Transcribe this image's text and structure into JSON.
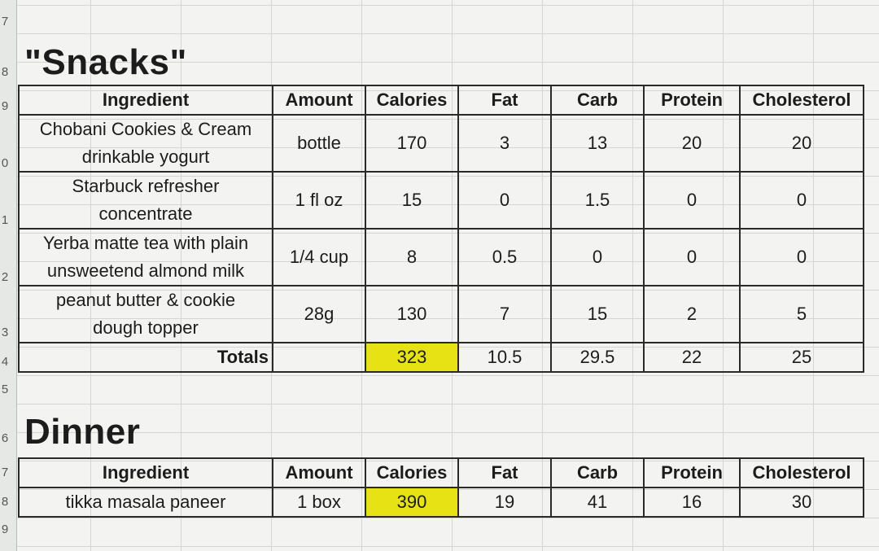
{
  "row_numbers": [
    "7",
    "8",
    "9",
    "0",
    "1",
    "2",
    "3",
    "4",
    "5",
    "6",
    "7",
    "8",
    "9"
  ],
  "snacks": {
    "title": "\"Snacks\"",
    "headers": [
      "Ingredient",
      "Amount",
      "Calories",
      "Fat",
      "Carb",
      "Protein",
      "Cholesterol"
    ],
    "rows": [
      {
        "ingredient_line1": "Chobani Cookies & Cream",
        "ingredient_line2": "drinkable yogurt",
        "amount": "bottle",
        "calories": "170",
        "fat": "3",
        "carb": "13",
        "protein": "20",
        "cholesterol": "20"
      },
      {
        "ingredient_line1": "Starbuck refresher",
        "ingredient_line2": "concentrate",
        "amount": "1 fl oz",
        "calories": "15",
        "fat": "0",
        "carb": "1.5",
        "protein": "0",
        "cholesterol": "0"
      },
      {
        "ingredient_line1": "Yerba matte tea with plain",
        "ingredient_line2": "unsweetend almond milk",
        "amount": "1/4 cup",
        "calories": "8",
        "fat": "0.5",
        "carb": "0",
        "protein": "0",
        "cholesterol": "0"
      },
      {
        "ingredient_line1": "peanut butter & cookie",
        "ingredient_line2": "dough topper",
        "amount": "28g",
        "calories": "130",
        "fat": "7",
        "carb": "15",
        "protein": "2",
        "cholesterol": "5"
      }
    ],
    "totals": {
      "label": "Totals",
      "amount": "",
      "calories": "323",
      "fat": "10.5",
      "carb": "29.5",
      "protein": "22",
      "cholesterol": "25"
    }
  },
  "dinner": {
    "title": "Dinner",
    "headers": [
      "Ingredient",
      "Amount",
      "Calories",
      "Fat",
      "Carb",
      "Protein",
      "Cholesterol"
    ],
    "rows": [
      {
        "ingredient": "tikka masala paneer",
        "amount": "1 box",
        "calories": "390",
        "fat": "19",
        "carb": "41",
        "protein": "16",
        "cholesterol": "30"
      }
    ]
  },
  "colors": {
    "highlight": "#e6e214",
    "grid": "#d3d6d3",
    "border": "#2a2a2a"
  }
}
